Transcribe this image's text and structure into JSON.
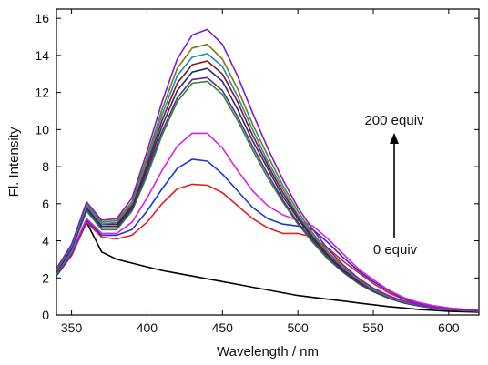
{
  "chart_data": {
    "type": "line",
    "xlabel": "Wavelength / nm",
    "ylabel": "Fl. Intensity",
    "xlim": [
      340,
      620
    ],
    "ylim": [
      0,
      16.5
    ],
    "x_ticks": [
      350,
      400,
      450,
      500,
      550,
      600
    ],
    "y_ticks": [
      0,
      2,
      4,
      6,
      8,
      10,
      12,
      14,
      16
    ],
    "grid": false,
    "legend": "none",
    "annotations": [
      {
        "text": "200 equiv"
      },
      {
        "text": "0 equiv"
      }
    ],
    "x": [
      340,
      350,
      360,
      370,
      380,
      390,
      400,
      410,
      420,
      430,
      440,
      450,
      460,
      470,
      480,
      490,
      500,
      510,
      520,
      530,
      540,
      550,
      560,
      570,
      580,
      590,
      600,
      610,
      620
    ],
    "series": [
      {
        "color": "#000000",
        "values": [
          2.2,
          3.2,
          5.0,
          3.4,
          3.0,
          2.8,
          2.6,
          2.4,
          2.25,
          2.1,
          1.95,
          1.8,
          1.65,
          1.5,
          1.35,
          1.2,
          1.05,
          0.95,
          0.85,
          0.75,
          0.65,
          0.55,
          0.45,
          0.38,
          0.3,
          0.25,
          0.2,
          0.17,
          0.15
        ]
      },
      {
        "color": "#e02020",
        "values": [
          2.1,
          3.2,
          5.0,
          4.2,
          4.1,
          4.3,
          5.0,
          6.0,
          6.8,
          7.05,
          7.0,
          6.6,
          5.9,
          5.2,
          4.7,
          4.4,
          4.4,
          4.2,
          3.6,
          2.9,
          2.3,
          1.7,
          1.2,
          0.85,
          0.6,
          0.45,
          0.35,
          0.28,
          0.22
        ]
      },
      {
        "color": "#1a37d6",
        "values": [
          2.1,
          3.3,
          5.1,
          4.3,
          4.3,
          4.6,
          5.6,
          6.8,
          7.9,
          8.4,
          8.3,
          7.6,
          6.7,
          5.8,
          5.2,
          4.9,
          4.8,
          4.6,
          3.9,
          3.1,
          2.4,
          1.8,
          1.3,
          0.9,
          0.65,
          0.48,
          0.37,
          0.3,
          0.24
        ]
      },
      {
        "color": "#e020e0",
        "values": [
          2.2,
          3.4,
          5.2,
          4.4,
          4.4,
          5.0,
          6.3,
          7.8,
          9.1,
          9.8,
          9.8,
          9.0,
          7.8,
          6.7,
          5.9,
          5.4,
          5.1,
          4.8,
          4.1,
          3.3,
          2.5,
          1.9,
          1.35,
          0.95,
          0.68,
          0.5,
          0.38,
          0.31,
          0.25
        ]
      },
      {
        "color": "#2f8a2f",
        "values": [
          2.2,
          3.5,
          5.6,
          4.6,
          4.6,
          5.6,
          7.5,
          9.7,
          11.5,
          12.5,
          12.6,
          11.9,
          10.5,
          8.9,
          7.4,
          6.1,
          4.9,
          3.9,
          3.0,
          2.3,
          1.7,
          1.25,
          0.9,
          0.65,
          0.48,
          0.36,
          0.28,
          0.23,
          0.2
        ]
      },
      {
        "color": "#5a2a8a",
        "values": [
          2.3,
          3.6,
          5.7,
          4.7,
          4.7,
          5.7,
          7.7,
          9.9,
          11.7,
          12.7,
          12.8,
          12.1,
          10.7,
          9.1,
          7.6,
          6.2,
          5.0,
          4.0,
          3.1,
          2.35,
          1.75,
          1.28,
          0.92,
          0.66,
          0.49,
          0.37,
          0.29,
          0.23,
          0.2
        ]
      },
      {
        "color": "#2a2a6a",
        "values": [
          2.3,
          3.6,
          5.8,
          4.8,
          4.8,
          5.8,
          7.9,
          10.2,
          12.1,
          13.1,
          13.3,
          12.6,
          11.1,
          9.4,
          7.9,
          6.4,
          5.2,
          4.1,
          3.2,
          2.4,
          1.8,
          1.3,
          0.94,
          0.68,
          0.5,
          0.38,
          0.3,
          0.24,
          0.2
        ]
      },
      {
        "color": "#8a1020",
        "values": [
          2.4,
          3.7,
          5.9,
          4.9,
          4.9,
          5.9,
          8.1,
          10.5,
          12.5,
          13.5,
          13.7,
          13.0,
          11.5,
          9.7,
          8.1,
          6.6,
          5.3,
          4.2,
          3.3,
          2.5,
          1.85,
          1.34,
          0.96,
          0.69,
          0.51,
          0.39,
          0.3,
          0.24,
          0.2
        ]
      },
      {
        "color": "#1a90b0",
        "values": [
          2.4,
          3.7,
          5.9,
          4.9,
          5.0,
          6.0,
          8.3,
          10.8,
          12.9,
          13.9,
          14.1,
          13.4,
          11.8,
          10.0,
          8.3,
          6.8,
          5.4,
          4.3,
          3.35,
          2.55,
          1.9,
          1.36,
          0.97,
          0.7,
          0.52,
          0.39,
          0.31,
          0.25,
          0.21
        ]
      },
      {
        "color": "#7a7a10",
        "values": [
          2.4,
          3.8,
          6.0,
          5.0,
          5.1,
          6.1,
          8.5,
          11.1,
          13.3,
          14.4,
          14.6,
          13.8,
          12.2,
          10.3,
          8.6,
          7.0,
          5.6,
          4.4,
          3.4,
          2.6,
          1.95,
          1.4,
          1.0,
          0.72,
          0.53,
          0.4,
          0.31,
          0.25,
          0.21
        ]
      },
      {
        "color": "#7a1adc",
        "values": [
          2.5,
          3.8,
          6.1,
          5.1,
          5.2,
          6.3,
          8.8,
          11.5,
          13.8,
          15.1,
          15.4,
          14.6,
          12.9,
          10.9,
          9.0,
          7.3,
          5.8,
          4.6,
          3.55,
          2.7,
          2.0,
          1.45,
          1.05,
          0.75,
          0.55,
          0.42,
          0.33,
          0.27,
          0.22
        ]
      }
    ]
  }
}
